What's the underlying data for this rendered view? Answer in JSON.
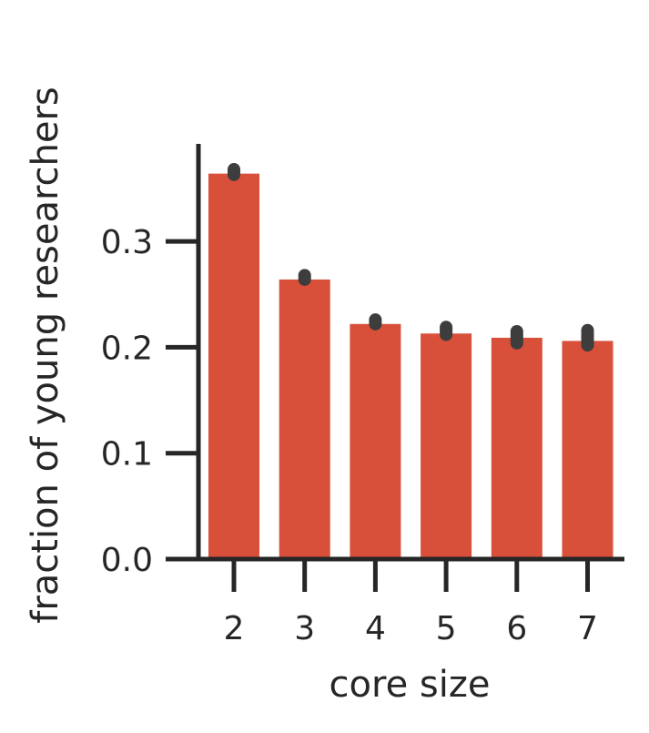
{
  "chart_data": {
    "type": "bar",
    "categories": [
      "2",
      "3",
      "4",
      "5",
      "6",
      "7"
    ],
    "values": [
      0.364,
      0.264,
      0.222,
      0.213,
      0.209,
      0.206
    ],
    "error_bars": [
      [
        0.363,
        0.368
      ],
      [
        0.264,
        0.268
      ],
      [
        0.222,
        0.226
      ],
      [
        0.212,
        0.219
      ],
      [
        0.204,
        0.215
      ],
      [
        0.202,
        0.216
      ]
    ],
    "xlabel": "core size",
    "ylabel": "fraction of young researchers",
    "ylim": [
      0,
      0.39
    ],
    "yticks": [
      0.0,
      0.1,
      0.2,
      0.3
    ],
    "ytick_labels": [
      "0.0",
      "0.1",
      "0.2",
      "0.3"
    ],
    "grid": false,
    "colors": {
      "bar": "#d84f3a",
      "error": "#3d3d3d",
      "axis": "#262626",
      "text": "#262626"
    }
  }
}
